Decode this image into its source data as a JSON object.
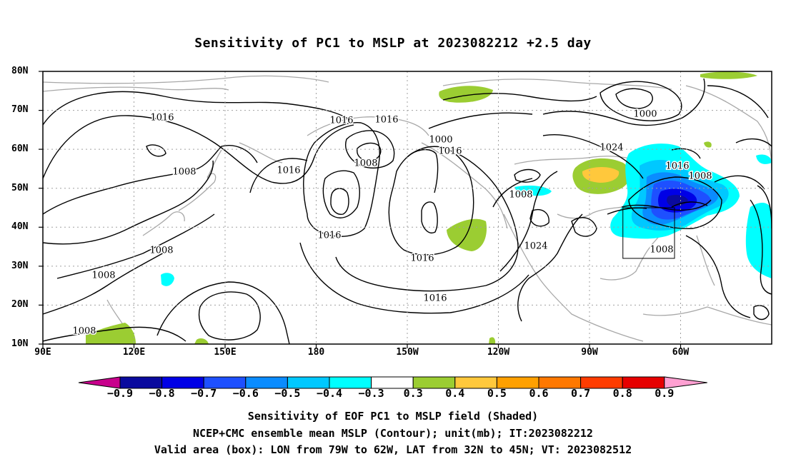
{
  "title": "Sensitivity of PC1 to MSLP at 2023082212 +2.5 day",
  "axes": {
    "y_ticks": [
      "80N",
      "70N",
      "60N",
      "50N",
      "40N",
      "30N",
      "20N",
      "10N"
    ],
    "x_ticks": [
      "90E",
      "120E",
      "150E",
      "180",
      "150W",
      "120W",
      "90W",
      "60W"
    ],
    "lon_range": [
      90,
      330
    ],
    "lat_range": [
      10,
      80
    ]
  },
  "contour_labels": [
    "1016",
    "1008",
    "1016",
    "1016",
    "1016",
    "1008",
    "1000",
    "1016",
    "1024",
    "1016",
    "1008",
    "1016",
    "1008",
    "1016",
    "1024",
    "1008",
    "1016",
    "1008",
    "1008",
    "1008",
    "1000"
  ],
  "valid_box": {
    "lon_w": 79,
    "lon_e": 62,
    "lat_s": 32,
    "lat_n": 45
  },
  "colorbar": {
    "labels": [
      "−0.9",
      "−0.8",
      "−0.7",
      "−0.6",
      "−0.5",
      "−0.4",
      "−0.3",
      "0.3",
      "0.4",
      "0.5",
      "0.6",
      "0.7",
      "0.8",
      "0.9"
    ],
    "colors": [
      "#0a0a9e",
      "#0000e6",
      "#1e50ff",
      "#0a8cff",
      "#00c8ff",
      "#00ffff",
      "#ffffff",
      "#9bcd32",
      "#ffc83c",
      "#ffa000",
      "#ff7800",
      "#ff3c00",
      "#e60000"
    ],
    "low_end_color": "#c8008c",
    "high_end_color": "#ffa0d2"
  },
  "captions": [
    "Sensitivity of EOF PC1 to MSLP field (Shaded)",
    "NCEP+CMC ensemble mean MSLP (Contour); unit(mb); IT:2023082212",
    "Valid area (box): LON from 79W to 62W, LAT from 32N to 45N; VT: 2023082512"
  ]
}
